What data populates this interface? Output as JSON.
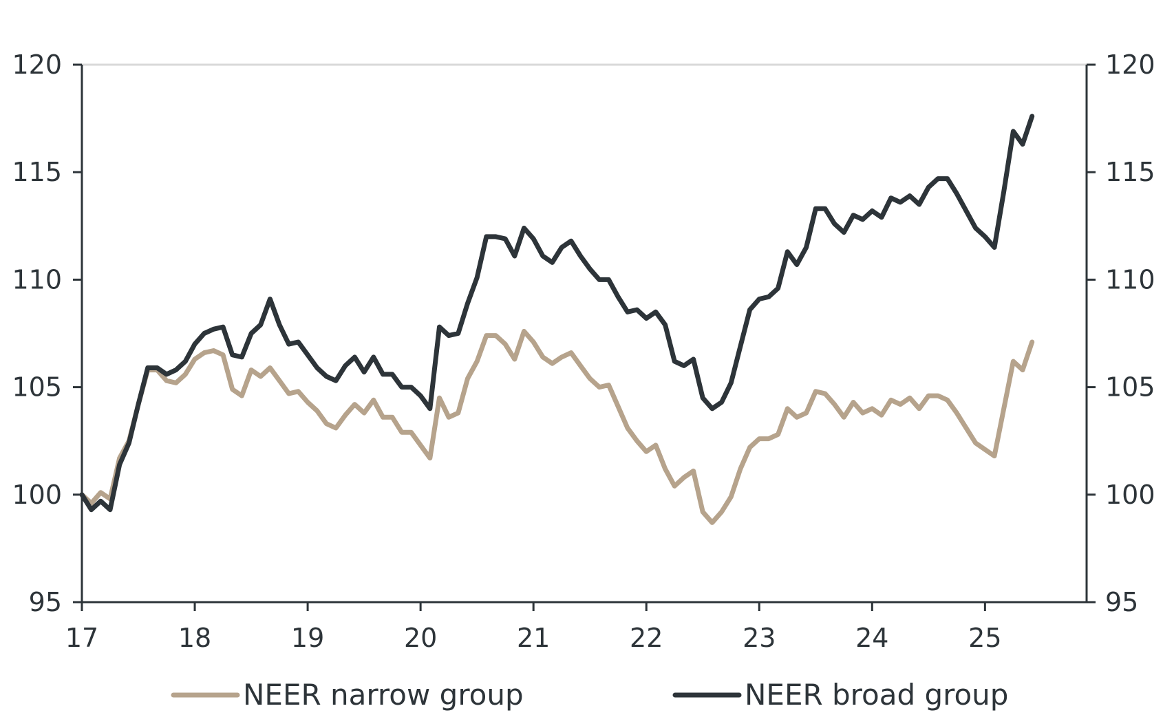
{
  "chart_data": {
    "type": "line",
    "title": "",
    "xlabel": "",
    "ylabel": "",
    "x_ticks": [
      "17",
      "18",
      "19",
      "20",
      "21",
      "22",
      "23",
      "24",
      "25"
    ],
    "x_tick_values": [
      2017,
      2018,
      2019,
      2020,
      2021,
      2022,
      2023,
      2024,
      2025
    ],
    "xlim": [
      2017,
      2025.9
    ],
    "ylim": [
      95,
      120
    ],
    "y_ticks": [
      95,
      100,
      105,
      110,
      115,
      120
    ],
    "y_ticks_left": [
      "95",
      "100",
      "105",
      "110",
      "115",
      "120"
    ],
    "y_ticks_right": [
      "95",
      "100",
      "105",
      "110",
      "115",
      "120"
    ],
    "legend_position": "bottom",
    "grid": false,
    "x": [
      2017.0,
      2017.0833,
      2017.1667,
      2017.25,
      2017.3333,
      2017.4167,
      2017.5,
      2017.5833,
      2017.6667,
      2017.75,
      2017.8333,
      2017.9167,
      2018.0,
      2018.0833,
      2018.1667,
      2018.25,
      2018.3333,
      2018.4167,
      2018.5,
      2018.5833,
      2018.6667,
      2018.75,
      2018.8333,
      2018.9167,
      2019.0,
      2019.0833,
      2019.1667,
      2019.25,
      2019.3333,
      2019.4167,
      2019.5,
      2019.5833,
      2019.6667,
      2019.75,
      2019.8333,
      2019.9167,
      2020.0,
      2020.0833,
      2020.1667,
      2020.25,
      2020.3333,
      2020.4167,
      2020.5,
      2020.5833,
      2020.6667,
      2020.75,
      2020.8333,
      2020.9167,
      2021.0,
      2021.0833,
      2021.1667,
      2021.25,
      2021.3333,
      2021.4167,
      2021.5,
      2021.5833,
      2021.6667,
      2021.75,
      2021.8333,
      2021.9167,
      2022.0,
      2022.0833,
      2022.1667,
      2022.25,
      2022.3333,
      2022.4167,
      2022.5,
      2022.5833,
      2022.6667,
      2022.75,
      2022.8333,
      2022.9167,
      2023.0,
      2023.0833,
      2023.1667,
      2023.25,
      2023.3333,
      2023.4167,
      2023.5,
      2023.5833,
      2023.6667,
      2023.75,
      2023.8333,
      2023.9167,
      2024.0,
      2024.0833,
      2024.1667,
      2024.25,
      2024.3333,
      2024.4167,
      2024.5,
      2024.5833,
      2024.6667,
      2024.75,
      2024.8333,
      2024.9167,
      2025.0,
      2025.0833,
      2025.1667,
      2025.25,
      2025.3333,
      2025.4167
    ],
    "series": [
      {
        "name": "NEER narrow group",
        "color": "#b6a38c",
        "values": [
          100.0,
          99.6,
          100.1,
          99.8,
          101.7,
          102.5,
          104.2,
          105.8,
          105.8,
          105.3,
          105.2,
          105.6,
          106.3,
          106.6,
          106.7,
          106.5,
          104.9,
          104.6,
          105.8,
          105.5,
          105.9,
          105.3,
          104.7,
          104.8,
          104.3,
          103.9,
          103.3,
          103.1,
          103.7,
          104.2,
          103.8,
          104.4,
          103.6,
          103.6,
          102.9,
          102.9,
          102.3,
          101.7,
          104.5,
          103.6,
          103.8,
          105.4,
          106.2,
          107.4,
          107.4,
          107.0,
          106.3,
          107.6,
          107.1,
          106.4,
          106.1,
          106.4,
          106.6,
          106.0,
          105.4,
          105.0,
          105.1,
          104.1,
          103.1,
          102.5,
          102.0,
          102.3,
          101.2,
          100.4,
          100.8,
          101.1,
          99.2,
          98.7,
          99.2,
          99.9,
          101.2,
          102.2,
          102.6,
          102.6,
          102.8,
          104.0,
          103.6,
          103.8,
          104.8,
          104.7,
          104.2,
          103.6,
          104.3,
          103.8,
          104.0,
          103.7,
          104.4,
          104.2,
          104.5,
          104.0,
          104.6,
          104.6,
          104.4,
          103.8,
          103.1,
          102.4,
          102.1,
          101.8,
          104.0,
          106.2,
          105.8,
          107.1
        ]
      },
      {
        "name": "NEER broad group",
        "color": "#2d3439",
        "values": [
          100.0,
          99.3,
          99.7,
          99.3,
          101.4,
          102.4,
          104.2,
          105.9,
          105.9,
          105.6,
          105.8,
          106.2,
          107.0,
          107.5,
          107.7,
          107.8,
          106.5,
          106.4,
          107.5,
          107.9,
          109.1,
          107.9,
          107.0,
          107.1,
          106.5,
          105.9,
          105.5,
          105.3,
          106.0,
          106.4,
          105.7,
          106.4,
          105.6,
          105.6,
          105.0,
          105.0,
          104.6,
          104.0,
          107.8,
          107.4,
          107.5,
          108.9,
          110.1,
          112.0,
          112.0,
          111.9,
          111.1,
          112.4,
          111.9,
          111.1,
          110.8,
          111.5,
          111.8,
          111.1,
          110.5,
          110.0,
          110.0,
          109.2,
          108.5,
          108.6,
          108.2,
          108.5,
          107.9,
          106.2,
          106.0,
          106.3,
          104.5,
          104.0,
          104.3,
          105.2,
          106.9,
          108.6,
          109.1,
          109.2,
          109.6,
          111.3,
          110.7,
          111.5,
          113.3,
          113.3,
          112.6,
          112.2,
          113.0,
          112.8,
          113.2,
          112.9,
          113.8,
          113.6,
          113.9,
          113.5,
          114.3,
          114.7,
          114.7,
          114.0,
          113.2,
          112.4,
          112.0,
          111.5,
          114.1,
          116.9,
          116.3,
          117.6
        ]
      }
    ],
    "legend": [
      "NEER narrow group",
      "NEER broad group"
    ]
  }
}
